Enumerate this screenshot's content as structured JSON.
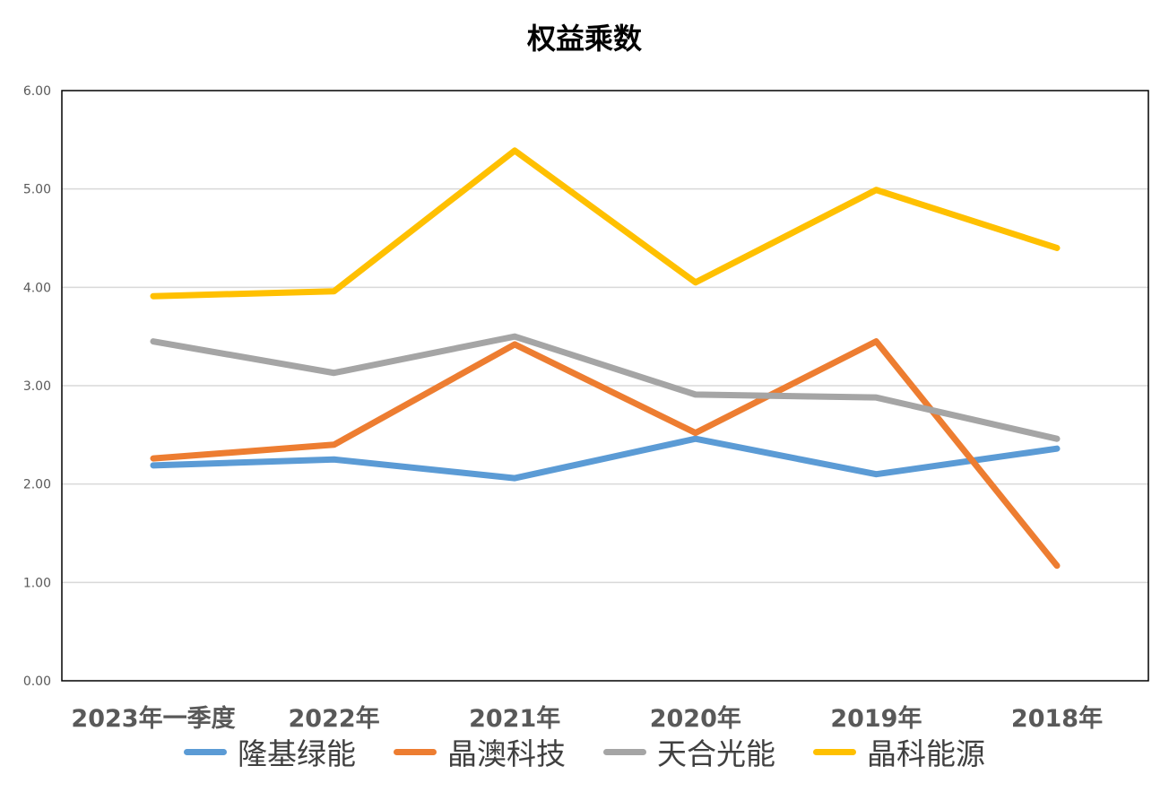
{
  "chart_data": {
    "type": "line",
    "title": "权益乘数",
    "categories": [
      "2023年一季度",
      "2022年",
      "2021年",
      "2020年",
      "2019年",
      "2018年"
    ],
    "series": [
      {
        "name": "隆基绿能",
        "color": "#5B9BD5",
        "values": [
          2.19,
          2.25,
          2.06,
          2.46,
          2.1,
          2.36
        ]
      },
      {
        "name": "晶澳科技",
        "color": "#ED7D31",
        "values": [
          2.26,
          2.4,
          3.42,
          2.52,
          3.45,
          1.17
        ]
      },
      {
        "name": "天合光能",
        "color": "#A5A5A5",
        "values": [
          3.45,
          3.13,
          3.5,
          2.91,
          2.88,
          2.46
        ]
      },
      {
        "name": "晶科能源",
        "color": "#FFC000",
        "values": [
          3.91,
          3.96,
          5.39,
          4.05,
          4.99,
          4.4
        ]
      }
    ],
    "yticks": [
      "0.00",
      "1.00",
      "2.00",
      "3.00",
      "4.00",
      "5.00",
      "6.00"
    ],
    "ylim": [
      0,
      6
    ],
    "grid": true,
    "legend_position": "bottom"
  }
}
